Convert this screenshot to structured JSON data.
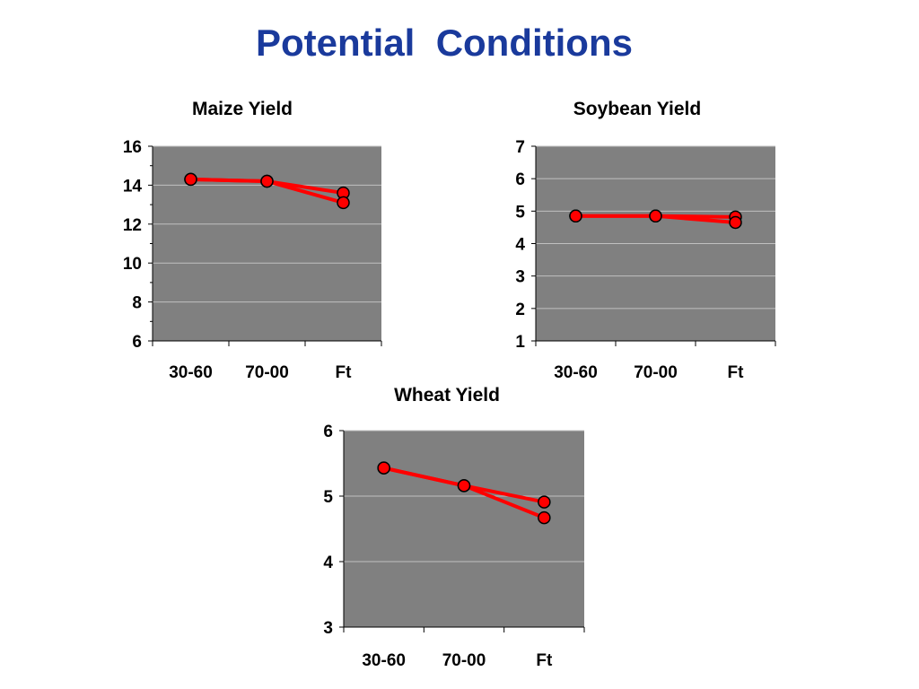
{
  "slide": {
    "title": "Potential  Conditions"
  },
  "colors": {
    "title": "#1a3a9c",
    "plot_background": "#808080",
    "gridline": "#c0c0c0",
    "series_line": "#ff0000",
    "marker_fill": "#ff0000",
    "marker_edge": "#000000"
  },
  "chart_data": [
    {
      "id": "maize",
      "type": "line",
      "title": "Maize Yield",
      "xlabel": "",
      "ylabel": "",
      "categories": [
        "30-60",
        "70-00",
        "Ft"
      ],
      "ylim": [
        6,
        16
      ],
      "yticks": [
        6,
        8,
        10,
        12,
        14,
        16
      ],
      "grid": true,
      "legend": "none",
      "series": [
        {
          "values": [
            14.3,
            14.2,
            13.6
          ]
        },
        {
          "values": [
            14.3,
            14.2,
            13.1
          ]
        }
      ]
    },
    {
      "id": "soybean",
      "type": "line",
      "title": "Soybean Yield",
      "xlabel": "",
      "ylabel": "",
      "categories": [
        "30-60",
        "70-00",
        "Ft"
      ],
      "ylim": [
        1,
        7
      ],
      "yticks": [
        1,
        2,
        3,
        4,
        5,
        6,
        7
      ],
      "grid": true,
      "legend": "none",
      "series": [
        {
          "values": [
            4.85,
            4.85,
            4.82
          ]
        },
        {
          "values": [
            4.85,
            4.85,
            4.65
          ]
        }
      ]
    },
    {
      "id": "wheat",
      "type": "line",
      "title": "Wheat Yield",
      "xlabel": "",
      "ylabel": "",
      "categories": [
        "30-60",
        "70-00",
        "Ft"
      ],
      "ylim": [
        3,
        6
      ],
      "yticks": [
        3,
        4,
        5,
        6
      ],
      "grid": true,
      "legend": "none",
      "series": [
        {
          "values": [
            5.43,
            5.16,
            4.91
          ]
        },
        {
          "values": [
            5.43,
            5.16,
            4.67
          ]
        }
      ]
    }
  ]
}
